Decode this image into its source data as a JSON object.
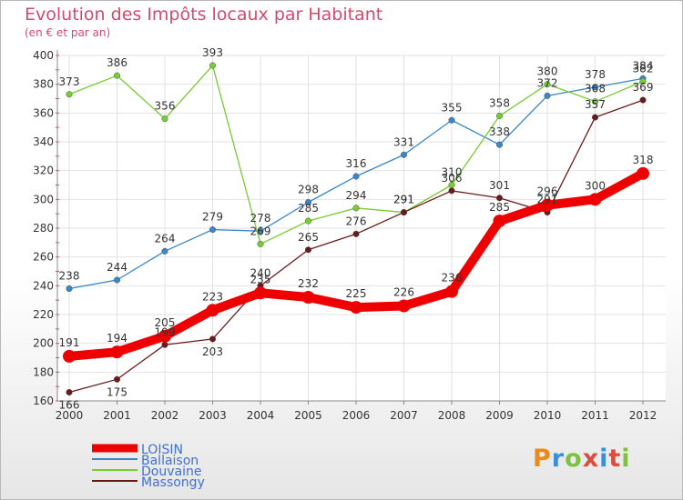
{
  "title": "Evolution des Impôts locaux par Habitant",
  "subtitle": "(en € et par an)",
  "logo": "Proxiti",
  "chart_data": {
    "type": "line",
    "title": "Evolution des Impôts locaux par Habitant",
    "subtitle": "(en € et par an)",
    "xlabel": "",
    "ylabel": "",
    "x": [
      "2000",
      "2001",
      "2002",
      "2003",
      "2004",
      "2005",
      "2006",
      "2007",
      "2008",
      "2009",
      "2010",
      "2011",
      "2012"
    ],
    "ylim": [
      160,
      400
    ],
    "yticks": [
      160,
      180,
      200,
      220,
      240,
      260,
      280,
      300,
      320,
      340,
      360,
      380,
      400
    ],
    "grid": true,
    "legend_position": "bottom-left",
    "series": [
      {
        "name": "LOISIN",
        "color": "#ee0000",
        "emphasis": true,
        "values": [
          191,
          194,
          205,
          223,
          235,
          232,
          225,
          226,
          236,
          285,
          296,
          300,
          318
        ],
        "labels": [
          "191",
          "194",
          "205",
          "223",
          "235",
          "232",
          "225",
          "226",
          "236",
          "285",
          "296",
          "300",
          "318"
        ]
      },
      {
        "name": "Ballaison",
        "color": "#3a86c8",
        "values": [
          238,
          244,
          264,
          279,
          278,
          298,
          316,
          331,
          355,
          338,
          372,
          378,
          384
        ],
        "labels": [
          "238",
          "244",
          "264",
          "279",
          "278",
          "298",
          "316",
          "331",
          "355",
          "338",
          "372",
          "378",
          "384"
        ]
      },
      {
        "name": "Douvaine",
        "color": "#77cc33",
        "values": [
          373,
          386,
          356,
          393,
          269,
          285,
          294,
          291,
          310,
          358,
          380,
          368,
          382
        ],
        "labels": [
          "373",
          "386",
          "356",
          "393",
          "269",
          "285",
          "294",
          "291",
          "310",
          "358",
          "380",
          "368",
          "382"
        ]
      },
      {
        "name": "Massongy",
        "color": "#6b1a1a",
        "values": [
          166,
          175,
          199,
          203,
          240,
          265,
          276,
          291,
          306,
          301,
          291,
          357,
          369
        ],
        "labels": [
          "166",
          "175",
          "199",
          "203",
          "240",
          "265",
          "276",
          "291",
          "306",
          "301",
          "291",
          "357",
          "369"
        ]
      }
    ]
  }
}
